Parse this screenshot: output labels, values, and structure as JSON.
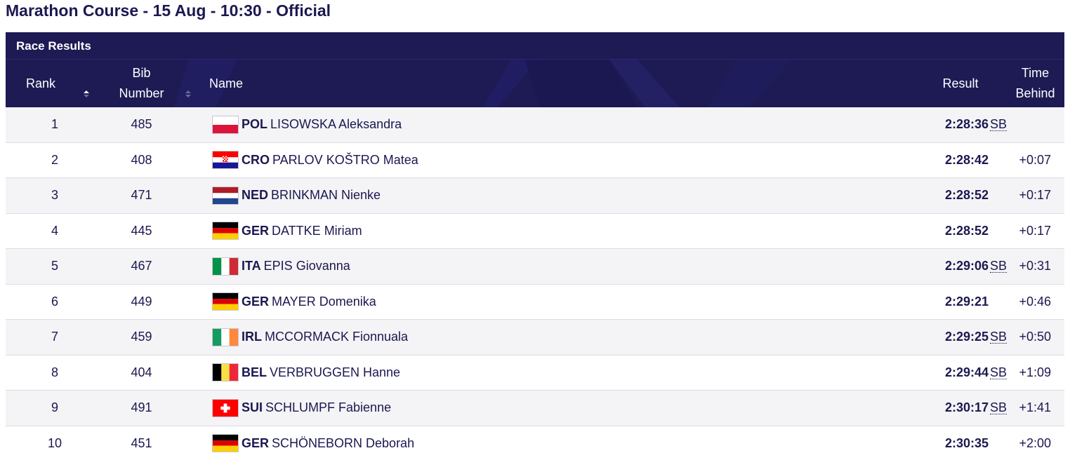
{
  "page": {
    "title": "Marathon Course - 15 Aug - 10:30 - Official"
  },
  "section": {
    "title": "Race Results"
  },
  "columns": {
    "rank": "Rank",
    "bib_line1": "Bib",
    "bib_line2": "Number",
    "name": "Name",
    "result": "Result",
    "behind_line1": "Time",
    "behind_line2": "Behind"
  },
  "rows": [
    {
      "rank": "1",
      "bib": "485",
      "nat": "POL",
      "name": "LISOWSKA Aleksandra",
      "result": "2:28:36",
      "mark": "SB",
      "behind": ""
    },
    {
      "rank": "2",
      "bib": "408",
      "nat": "CRO",
      "name": "PARLOV KOŠTRO Matea",
      "result": "2:28:42",
      "mark": "",
      "behind": "+0:07"
    },
    {
      "rank": "3",
      "bib": "471",
      "nat": "NED",
      "name": "BRINKMAN Nienke",
      "result": "2:28:52",
      "mark": "",
      "behind": "+0:17"
    },
    {
      "rank": "4",
      "bib": "445",
      "nat": "GER",
      "name": "DATTKE Miriam",
      "result": "2:28:52",
      "mark": "",
      "behind": "+0:17"
    },
    {
      "rank": "5",
      "bib": "467",
      "nat": "ITA",
      "name": "EPIS Giovanna",
      "result": "2:29:06",
      "mark": "SB",
      "behind": "+0:31"
    },
    {
      "rank": "6",
      "bib": "449",
      "nat": "GER",
      "name": "MAYER Domenika",
      "result": "2:29:21",
      "mark": "",
      "behind": "+0:46"
    },
    {
      "rank": "7",
      "bib": "459",
      "nat": "IRL",
      "name": "MCCORMACK Fionnuala",
      "result": "2:29:25",
      "mark": "SB",
      "behind": "+0:50"
    },
    {
      "rank": "8",
      "bib": "404",
      "nat": "BEL",
      "name": "VERBRUGGEN Hanne",
      "result": "2:29:44",
      "mark": "SB",
      "behind": "+1:09"
    },
    {
      "rank": "9",
      "bib": "491",
      "nat": "SUI",
      "name": "SCHLUMPF Fabienne",
      "result": "2:30:17",
      "mark": "SB",
      "behind": "+1:41"
    },
    {
      "rank": "10",
      "bib": "451",
      "nat": "GER",
      "name": "SCHÖNEBORN Deborah",
      "result": "2:30:35",
      "mark": "",
      "behind": "+2:00"
    }
  ],
  "icons": {
    "sort": "sort-arrows-icon",
    "flags": {
      "POL": "poland-flag-icon",
      "CRO": "croatia-flag-icon",
      "NED": "netherlands-flag-icon",
      "GER": "germany-flag-icon",
      "ITA": "italy-flag-icon",
      "IRL": "ireland-flag-icon",
      "BEL": "belgium-flag-icon",
      "SUI": "switzerland-flag-icon"
    }
  },
  "colors": {
    "header_bg": "#1d1a54",
    "text": "#1b1850",
    "row_alt": "#f4f4f6"
  }
}
